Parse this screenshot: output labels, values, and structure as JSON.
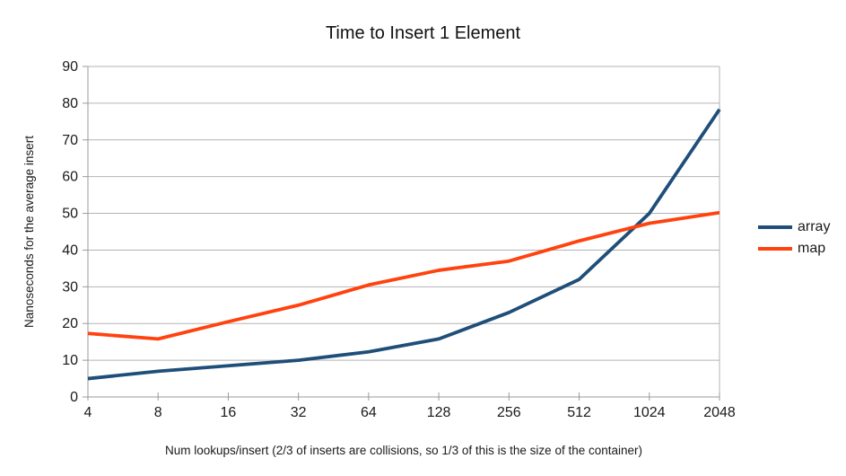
{
  "title": "Time to Insert 1 Element",
  "chart_data": {
    "type": "line",
    "title": "Time to Insert 1 Element",
    "xlabel": "Num lookups/insert (2/3 of inserts are collisions, so 1/3 of this is the size of the container)",
    "ylabel": "Nanoseconds for the average insert",
    "categories": [
      "4",
      "8",
      "16",
      "32",
      "64",
      "128",
      "256",
      "512",
      "1024",
      "2048"
    ],
    "series": [
      {
        "name": "array",
        "color": "#1F4E79",
        "values": [
          5,
          7,
          8.5,
          10,
          12.3,
          15.8,
          23,
          32,
          50,
          78.3
        ]
      },
      {
        "name": "map",
        "color": "#FF420E",
        "values": [
          17.3,
          15.8,
          20.5,
          25,
          30.5,
          34.5,
          37,
          42.5,
          47.3,
          50.2
        ]
      }
    ],
    "ylim": [
      0,
      90
    ],
    "y_tick_step": 10,
    "grid": "horizontal",
    "legend_position": "right",
    "colors": {
      "background": "#ffffff",
      "gridline": "#b3b3b3",
      "axis": "#999999",
      "text": "#1a1a1a"
    }
  }
}
